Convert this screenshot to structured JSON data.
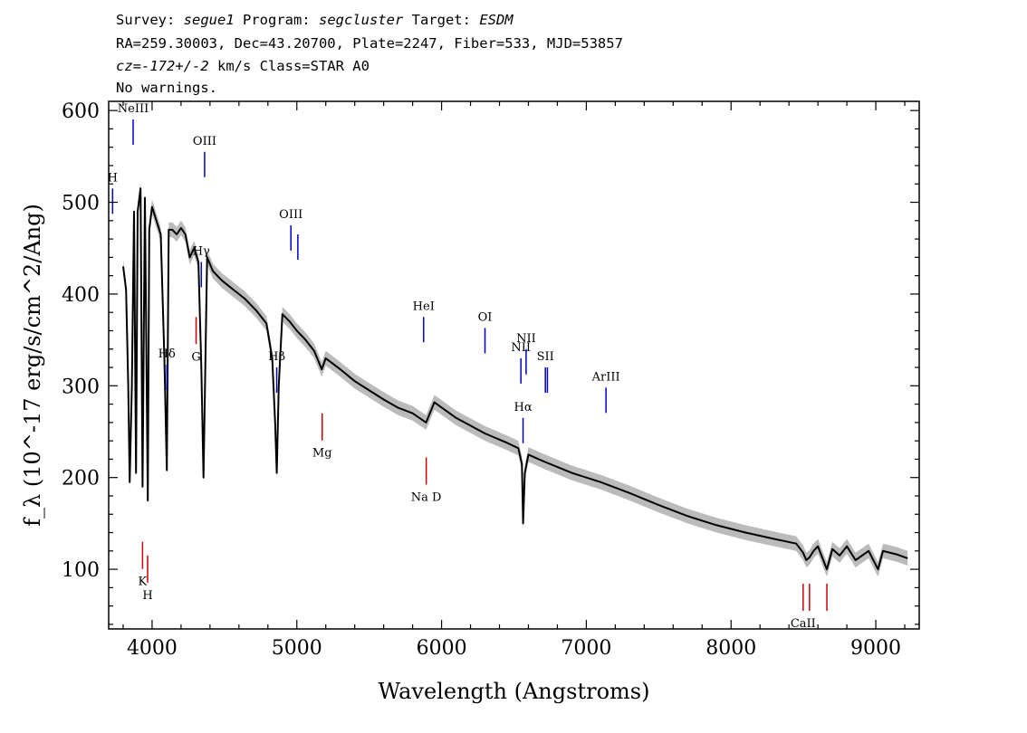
{
  "header": {
    "line1": {
      "survey_label": "Survey: ",
      "survey": "segue1",
      "program_label": " Program: ",
      "program": "segcluster",
      "target_label": " Target: ",
      "target": "ESDM"
    },
    "line2": "RA=259.30003, Dec=43.20700, Plate=2247, Fiber=533, MJD=53857",
    "line3": {
      "cz_label": "cz=",
      "cz": "-172+/-2",
      "rest": " km/s Class=STAR A0"
    },
    "line4": "No warnings."
  },
  "chart_data": {
    "type": "line",
    "xlabel": "Wavelength (Angstroms)",
    "ylabel": "f_λ (10^-17 erg/s/cm^2/Ang)",
    "xlim": [
      3700,
      9300
    ],
    "ylim": [
      35,
      610
    ],
    "x_ticks": [
      4000,
      5000,
      6000,
      7000,
      8000,
      9000
    ],
    "y_ticks": [
      100,
      200,
      300,
      400,
      500,
      600
    ],
    "grid": false,
    "colors": {
      "flux": "#000000",
      "error_band": "#bbbbbb",
      "emission_lines": "#0000cc",
      "absorption_lines": "#cc0000"
    },
    "series": [
      {
        "x": [
          3800,
          3820,
          3835,
          3845,
          3860,
          3875,
          3889,
          3900,
          3920,
          3934,
          3950,
          3970,
          3980,
          4000,
          4030,
          4060,
          4085,
          4102,
          4115,
          4140,
          4170,
          4200,
          4230,
          4260,
          4290,
          4320,
          4340,
          4355,
          4380,
          4420,
          4480,
          4560,
          4640,
          4720,
          4790,
          4830,
          4850,
          4861,
          4875,
          4900,
          4950,
          5000,
          5060,
          5120,
          5172,
          5200,
          5300,
          5400,
          5500,
          5600,
          5700,
          5800,
          5893,
          5950,
          6100,
          6300,
          6450,
          6530,
          6555,
          6563,
          6575,
          6600,
          6700,
          6900,
          7100,
          7300,
          7500,
          7700,
          7900,
          8100,
          8300,
          8450,
          8498,
          8520,
          8542,
          8570,
          8600,
          8662,
          8700,
          8750,
          8800,
          8860,
          8950,
          9015,
          9050,
          9150,
          9220
        ],
        "y": [
          430,
          405,
          300,
          195,
          300,
          490,
          205,
          490,
          515,
          190,
          505,
          175,
          470,
          495,
          480,
          465,
          330,
          208,
          470,
          470,
          465,
          472,
          465,
          440,
          450,
          435,
          320,
          200,
          440,
          425,
          415,
          405,
          395,
          382,
          368,
          330,
          260,
          205,
          300,
          378,
          370,
          360,
          350,
          338,
          318,
          330,
          318,
          305,
          295,
          285,
          276,
          270,
          260,
          282,
          265,
          248,
          238,
          232,
          215,
          150,
          205,
          225,
          218,
          205,
          195,
          183,
          170,
          158,
          148,
          140,
          133,
          128,
          118,
          110,
          113,
          120,
          125,
          100,
          122,
          115,
          125,
          110,
          120,
          100,
          120,
          116,
          112
        ]
      }
    ],
    "emission_lines": [
      {
        "label": "H",
        "x": 3727
      },
      {
        "label": "NeIII",
        "x": 3869
      },
      {
        "label": "Hδ",
        "x": 4102
      },
      {
        "label": "Hγ",
        "x": 4340
      },
      {
        "label": "OIII",
        "x": 4363
      },
      {
        "label": "Hβ",
        "x": 4861
      },
      {
        "label": "OIII",
        "x": 4959
      },
      {
        "label": "",
        "x": 5007
      },
      {
        "label": "HeI",
        "x": 5876
      },
      {
        "label": "OI",
        "x": 6300
      },
      {
        "label": "NII",
        "x": 6548
      },
      {
        "label": "Hα",
        "x": 6563
      },
      {
        "label": "NII",
        "x": 6584
      },
      {
        "label": "SII",
        "x": 6717
      },
      {
        "label": "",
        "x": 6731
      },
      {
        "label": "ArIII",
        "x": 7136
      }
    ],
    "absorption_lines": [
      {
        "label": "K",
        "x": 3934
      },
      {
        "label": "H",
        "x": 3969
      },
      {
        "label": "G",
        "x": 4304
      },
      {
        "label": "Mg",
        "x": 5175
      },
      {
        "label": "Na D",
        "x": 5894
      },
      {
        "label": "CaII",
        "x": 8498
      },
      {
        "label": "",
        "x": 8542
      },
      {
        "label": "",
        "x": 8662
      }
    ]
  }
}
